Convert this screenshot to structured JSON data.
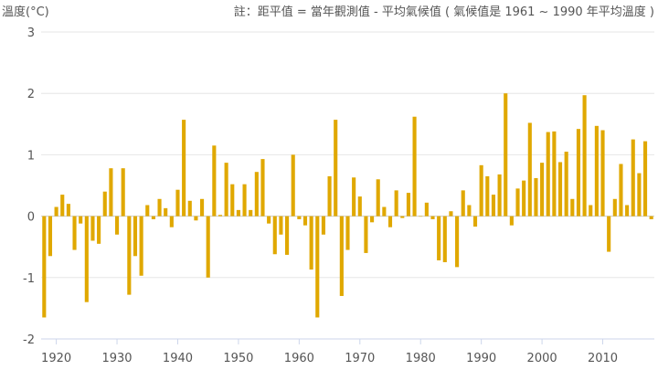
{
  "chart_data": {
    "type": "bar",
    "ylabel": "溫度(°C)",
    "note": "註：距平值 = 當年觀測值 - 平均氣候值 ( 氣候值是 1961 ~ 1990 年平均溫度 )",
    "ylim": [
      -2,
      3
    ],
    "y_ticks": [
      3,
      2,
      1,
      0,
      -1,
      -2
    ],
    "x_ticks": [
      1920,
      1930,
      1940,
      1950,
      1960,
      1970,
      1980,
      1990,
      2000,
      2010
    ],
    "bar_color": "#E0A800",
    "grid": true,
    "x": [
      1918,
      1919,
      1920,
      1921,
      1922,
      1923,
      1924,
      1925,
      1926,
      1927,
      1928,
      1929,
      1930,
      1931,
      1932,
      1933,
      1934,
      1935,
      1936,
      1937,
      1938,
      1939,
      1940,
      1941,
      1942,
      1943,
      1944,
      1945,
      1946,
      1947,
      1948,
      1949,
      1950,
      1951,
      1952,
      1953,
      1954,
      1955,
      1956,
      1957,
      1958,
      1959,
      1960,
      1961,
      1962,
      1963,
      1964,
      1965,
      1966,
      1967,
      1968,
      1969,
      1970,
      1971,
      1972,
      1973,
      1974,
      1975,
      1976,
      1977,
      1978,
      1979,
      1980,
      1981,
      1982,
      1983,
      1984,
      1985,
      1986,
      1987,
      1988,
      1989,
      1990,
      1991,
      1992,
      1993,
      1994,
      1995,
      1996,
      1997,
      1998,
      1999,
      2000,
      2001,
      2002,
      2003,
      2004,
      2005,
      2006,
      2007,
      2008,
      2009,
      2010,
      2011,
      2012,
      2013,
      2014,
      2015,
      2016,
      2017,
      2018
    ],
    "values": [
      -1.65,
      -0.65,
      0.15,
      0.35,
      0.2,
      -0.55,
      -0.12,
      -1.4,
      -0.4,
      -0.45,
      0.4,
      0.78,
      -0.3,
      0.78,
      -1.28,
      -0.65,
      -0.97,
      0.18,
      -0.05,
      0.28,
      0.13,
      -0.18,
      0.43,
      1.57,
      0.25,
      -0.07,
      0.28,
      -1.0,
      1.15,
      0.02,
      0.87,
      0.52,
      0.1,
      0.52,
      0.1,
      0.72,
      0.93,
      -0.12,
      -0.62,
      -0.3,
      -0.63,
      1.0,
      -0.05,
      -0.15,
      -0.87,
      -1.65,
      -0.3,
      0.65,
      1.57,
      -1.3,
      -0.55,
      0.63,
      0.32,
      -0.6,
      -0.1,
      0.6,
      0.15,
      -0.18,
      0.42,
      -0.03,
      0.38,
      1.62,
      0.0,
      0.22,
      -0.05,
      -0.72,
      -0.75,
      0.08,
      -0.83,
      0.42,
      0.18,
      -0.17,
      0.83,
      0.65,
      0.35,
      0.68,
      2.0,
      -0.15,
      0.45,
      0.58,
      1.52,
      0.62,
      0.87,
      1.37,
      1.38,
      0.88,
      1.05,
      0.28,
      1.42,
      1.97,
      0.18,
      1.47,
      1.4,
      -0.58,
      0.28,
      0.85,
      0.18,
      1.25,
      0.7,
      1.22,
      -0.05
    ]
  }
}
